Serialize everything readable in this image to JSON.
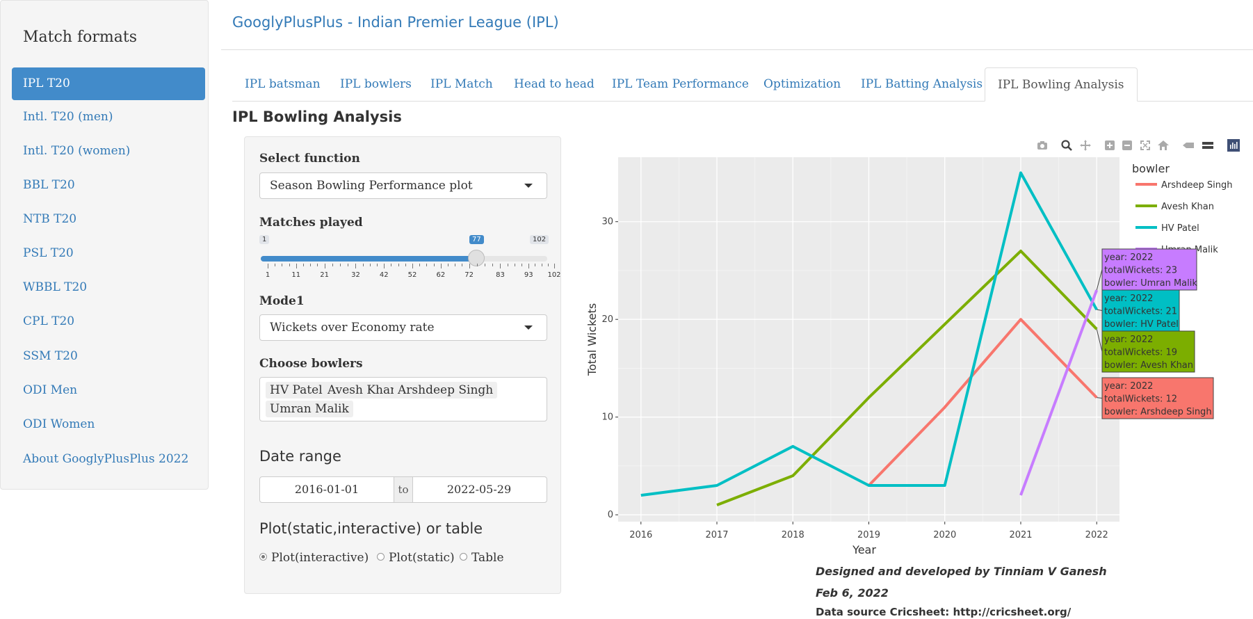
{
  "sidebar": {
    "title": "Match formats",
    "items": [
      {
        "label": "IPL T20",
        "active": true
      },
      {
        "label": "Intl. T20 (men)"
      },
      {
        "label": "Intl. T20 (women)"
      },
      {
        "label": "BBL T20"
      },
      {
        "label": "NTB T20"
      },
      {
        "label": "PSL T20"
      },
      {
        "label": "WBBL T20"
      },
      {
        "label": "CPL T20"
      },
      {
        "label": "SSM T20"
      },
      {
        "label": "ODI Men"
      },
      {
        "label": "ODI Women"
      },
      {
        "label": "About GooglyPlusPlus 2022"
      }
    ]
  },
  "header": {
    "title": "GooglyPlusPlus - Indian Premier League (IPL)"
  },
  "tabs": [
    {
      "label": "IPL batsman"
    },
    {
      "label": "IPL bowlers"
    },
    {
      "label": "IPL Match"
    },
    {
      "label": "Head to head"
    },
    {
      "label": "IPL Team Performance"
    },
    {
      "label": "Optimization"
    },
    {
      "label": "IPL Batting Analysis"
    },
    {
      "label": "IPL Bowling Analysis",
      "active": true
    }
  ],
  "page_title": "IPL Bowling Analysis",
  "controls": {
    "function_label": "Select function",
    "function_value": "Season Bowling Performance plot",
    "matches_label": "Matches played",
    "slider": {
      "min": 1,
      "max": 102,
      "value": 77,
      "min_label": "1",
      "max_label": "102",
      "value_label": "77",
      "ticks": [
        "1",
        "11",
        "21",
        "32",
        "42",
        "52",
        "62",
        "72",
        "83",
        "93",
        "102"
      ]
    },
    "mode_label": "Mode1",
    "mode_value": "Wickets over Economy rate",
    "bowlers_label": "Choose bowlers",
    "bowlers": [
      "HV Patel",
      "Avesh Khan",
      "Arshdeep Singh",
      "Umran Malik"
    ],
    "date_label": "Date range",
    "date_from": "2016-01-01",
    "date_sep": "to",
    "date_to": "2022-05-29",
    "output_label": "Plot(static,interactive) or table",
    "output_options": [
      {
        "label": "Plot(interactive)",
        "selected": true
      },
      {
        "label": "Plot(static)"
      },
      {
        "label": "Table"
      }
    ]
  },
  "chart_data": {
    "type": "line",
    "xlabel": "Year",
    "ylabel": "Total Wickets",
    "x_ticks": [
      "2016",
      "2017",
      "2018",
      "2019",
      "2020",
      "2021",
      "2022"
    ],
    "y_ticks": [
      "0",
      "10",
      "20",
      "30"
    ],
    "xlim": [
      2015.7,
      2022.3
    ],
    "ylim": [
      -0.7,
      36.6
    ],
    "legend_title": "bowler",
    "legend_placement": "right",
    "series": [
      {
        "name": "Arshdeep Singh",
        "color": "#F8766D",
        "x": [
          2019,
          2020,
          2021,
          2022
        ],
        "y": [
          3,
          11,
          20,
          12
        ]
      },
      {
        "name": "Avesh Khan",
        "color": "#7CAE00",
        "x": [
          2017,
          2018,
          2019,
          2020,
          2021,
          2022
        ],
        "y": [
          1,
          4,
          12,
          19.5,
          27,
          19
        ]
      },
      {
        "name": "HV Patel",
        "color": "#00BFC4",
        "x": [
          2016,
          2017,
          2018,
          2019,
          2020,
          2021,
          2022
        ],
        "y": [
          2,
          3,
          7,
          3,
          3,
          35,
          21
        ]
      },
      {
        "name": "Umran Malik",
        "color": "#C77CFF",
        "x": [
          2021,
          2022
        ],
        "y": [
          2,
          23
        ]
      }
    ],
    "tooltips": [
      {
        "series": "Umran Malik",
        "lines": [
          "year: 2022",
          "totalWickets: 23",
          "bowler: Umran Malik"
        ]
      },
      {
        "series": "HV Patel",
        "lines": [
          "year: 2022",
          "totalWickets: 21",
          "bowler: HV Patel"
        ]
      },
      {
        "series": "Avesh Khan",
        "lines": [
          "year: 2022",
          "totalWickets: 19",
          "bowler: Avesh Khan"
        ]
      },
      {
        "series": "Arshdeep Singh",
        "lines": [
          "year: 2022",
          "totalWickets: 12",
          "bowler: Arshdeep Singh"
        ]
      }
    ]
  },
  "modebar": [
    "camera-icon",
    "zoom-icon",
    "pan-icon",
    "zoom-in-icon",
    "zoom-out-icon",
    "autoscale-icon",
    "reset-axes-icon",
    "spike-lines-icon",
    "compare-icon",
    "plotly-logo-icon"
  ],
  "footer": {
    "line1": "Designed and developed by Tinniam V Ganesh",
    "line2": "Feb 6, 2022",
    "line3": "Data source Cricsheet: http://cricsheet.org/"
  }
}
